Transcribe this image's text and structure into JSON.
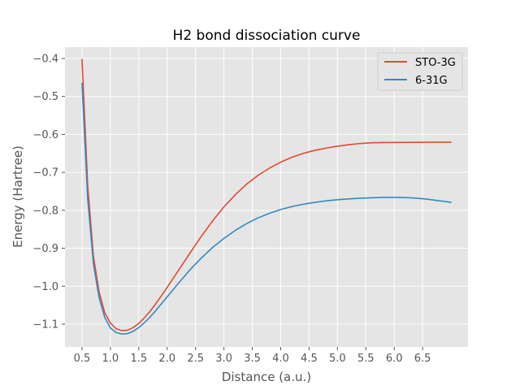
{
  "chart_data": {
    "type": "line",
    "title": "H2 bond dissociation curve",
    "xlabel": "Distance (a.u.)",
    "ylabel": "Energy (Hartree)",
    "xlim": [
      0.2,
      7.3
    ],
    "ylim": [
      -1.16,
      -0.37
    ],
    "xticks": [
      0.5,
      1.0,
      1.5,
      2.0,
      2.5,
      3.0,
      3.5,
      4.0,
      4.5,
      5.0,
      5.5,
      6.0,
      6.5
    ],
    "xtick_labels": [
      "0.5",
      "1.0",
      "1.5",
      "2.0",
      "2.5",
      "3.0",
      "3.5",
      "4.0",
      "4.5",
      "5.0",
      "5.5",
      "6.0",
      "6.5"
    ],
    "yticks": [
      -0.4,
      -0.5,
      -0.6,
      -0.7,
      -0.8,
      -0.9,
      -1.0,
      -1.1
    ],
    "ytick_labels": [
      "−0.4",
      "−0.5",
      "−0.6",
      "−0.7",
      "−0.8",
      "−0.9",
      "−1.0",
      "−1.1"
    ],
    "grid": true,
    "legend_position": "top-right",
    "x": [
      0.5,
      0.6,
      0.7,
      0.8,
      0.9,
      1.0,
      1.1,
      1.2,
      1.3,
      1.4,
      1.5,
      1.6,
      1.7,
      1.8,
      1.9,
      2.0,
      2.2,
      2.4,
      2.6,
      2.8,
      3.0,
      3.2,
      3.4,
      3.6,
      3.8,
      4.0,
      4.2,
      4.4,
      4.6,
      4.8,
      5.0,
      5.2,
      5.4,
      5.6,
      5.8,
      6.0,
      6.2,
      6.4,
      6.6,
      6.8,
      7.0
    ],
    "series": [
      {
        "name": "STO-3G",
        "color": "#e24a33",
        "values": [
          -0.402,
          -0.735,
          -0.92,
          -1.015,
          -1.07,
          -1.097,
          -1.112,
          -1.117,
          -1.116,
          -1.109,
          -1.098,
          -1.083,
          -1.066,
          -1.046,
          -1.025,
          -1.003,
          -0.958,
          -0.913,
          -0.869,
          -0.828,
          -0.791,
          -0.759,
          -0.731,
          -0.708,
          -0.689,
          -0.673,
          -0.66,
          -0.65,
          -0.642,
          -0.636,
          -0.631,
          -0.627,
          -0.624,
          -0.622,
          -0.6215,
          -0.6212,
          -0.621,
          -0.6208,
          -0.6207,
          -0.6206,
          -0.6206
        ]
      },
      {
        "name": "6-31G",
        "color": "#348abd",
        "values": [
          -0.465,
          -0.77,
          -0.94,
          -1.03,
          -1.082,
          -1.11,
          -1.122,
          -1.126,
          -1.125,
          -1.119,
          -1.109,
          -1.096,
          -1.081,
          -1.064,
          -1.046,
          -1.028,
          -0.992,
          -0.957,
          -0.926,
          -0.898,
          -0.874,
          -0.853,
          -0.835,
          -0.82,
          -0.808,
          -0.798,
          -0.79,
          -0.784,
          -0.779,
          -0.775,
          -0.772,
          -0.77,
          -0.768,
          -0.767,
          -0.766,
          -0.766,
          -0.7665,
          -0.768,
          -0.771,
          -0.775,
          -0.779
        ]
      }
    ]
  }
}
